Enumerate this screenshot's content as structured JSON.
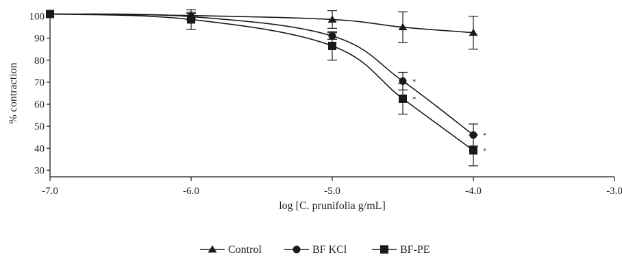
{
  "chart_data": {
    "type": "line",
    "xlabel": "log [C. prunifolia g/mL]",
    "ylabel": "% contraction",
    "xlim": [
      -7.0,
      -3.0
    ],
    "ylim": [
      27,
      103
    ],
    "x_ticks": [
      "-7.0",
      "-6.0",
      "-5.0",
      "-4.0",
      "-3.0"
    ],
    "x_tick_values": [
      -7.0,
      -6.0,
      -5.0,
      -4.0,
      -3.0
    ],
    "y_ticks": [
      "30",
      "40",
      "50",
      "60",
      "70",
      "80",
      "90",
      "100"
    ],
    "y_tick_values": [
      30,
      40,
      50,
      60,
      70,
      80,
      90,
      100
    ],
    "grid": false,
    "legend_position": "bottom",
    "colors": {
      "line": "#1a1a1a",
      "axis": "#1a1a1a"
    },
    "series": [
      {
        "name": "Control",
        "marker": "triangle",
        "points": [
          {
            "x": -7.0,
            "y": 101,
            "err": 0,
            "label": ""
          },
          {
            "x": -6.0,
            "y": 100.3,
            "err": 1.5,
            "label": ""
          },
          {
            "x": -5.0,
            "y": 98.5,
            "err": 4,
            "label": ""
          },
          {
            "x": -4.5,
            "y": 95,
            "err": 7,
            "label": ""
          },
          {
            "x": -4.0,
            "y": 92.5,
            "err": 7.5,
            "label": ""
          }
        ]
      },
      {
        "name": "BF KCl",
        "marker": "circle",
        "points": [
          {
            "x": -7.0,
            "y": 101,
            "err": 0,
            "label": ""
          },
          {
            "x": -6.0,
            "y": 99.8,
            "err": 1.5,
            "label": ""
          },
          {
            "x": -5.0,
            "y": 91,
            "err": 1.5,
            "label": ""
          },
          {
            "x": -4.5,
            "y": 70.5,
            "err": 4,
            "label": "*"
          },
          {
            "x": -4.0,
            "y": 46,
            "err": 5,
            "label": "*"
          }
        ]
      },
      {
        "name": "BF-PE",
        "marker": "square",
        "points": [
          {
            "x": -7.0,
            "y": 101,
            "err": 0,
            "label": ""
          },
          {
            "x": -6.0,
            "y": 98.5,
            "err": 4.5,
            "label": ""
          },
          {
            "x": -5.0,
            "y": 86.5,
            "err": 6.5,
            "label": ""
          },
          {
            "x": -4.5,
            "y": 62.5,
            "err": 7,
            "label": "*"
          },
          {
            "x": -4.0,
            "y": 39,
            "err": 7,
            "label": "*"
          }
        ]
      }
    ]
  }
}
